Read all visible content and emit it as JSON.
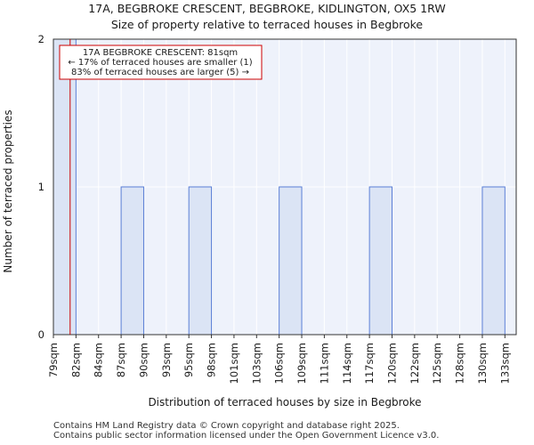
{
  "chart_data": {
    "type": "bar",
    "title": [
      "17A, BEGBROKE CRESCENT, BEGBROKE, KIDLINGTON, OX5 1RW",
      "Size of property relative to terraced houses in Begbroke"
    ],
    "xlabel": "Distribution of terraced houses by size in Begbroke",
    "ylabel": "Number of terraced properties",
    "categories": [
      "79sqm",
      "82sqm",
      "84sqm",
      "87sqm",
      "90sqm",
      "93sqm",
      "95sqm",
      "98sqm",
      "101sqm",
      "103sqm",
      "106sqm",
      "109sqm",
      "111sqm",
      "114sqm",
      "117sqm",
      "120sqm",
      "122sqm",
      "125sqm",
      "128sqm",
      "130sqm",
      "133sqm"
    ],
    "values": [
      2,
      0,
      0,
      1,
      0,
      0,
      1,
      0,
      0,
      0,
      1,
      0,
      0,
      0,
      1,
      0,
      0,
      0,
      0,
      1,
      0
    ],
    "ylim": [
      0,
      2
    ],
    "yticks": [
      0,
      1,
      2
    ],
    "grid": true,
    "bar_color": "#dbe4f5",
    "bar_edge_color": "#5b7fd6",
    "marker": {
      "x_value_sqm": 81,
      "color": "#cc0000",
      "annotation": [
        "17A BEGBROKE CRESCENT: 81sqm",
        "← 17% of terraced houses are smaller (1)",
        "83% of terraced houses are larger (5) →"
      ]
    }
  },
  "footer": {
    "line1": "Contains HM Land Registry data © Crown copyright and database right 2025.",
    "line2": "Contains public sector information licensed under the Open Government Licence v3.0."
  }
}
